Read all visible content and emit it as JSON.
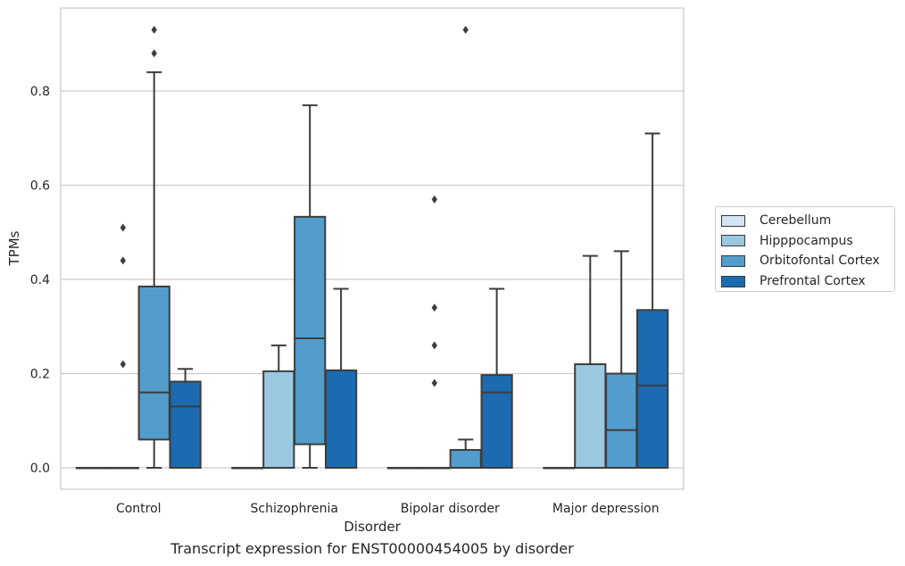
{
  "chart_data": {
    "type": "box",
    "title": "Transcript expression for ENST00000454005 by disorder",
    "xlabel": "Disorder",
    "ylabel": "TPMs",
    "ylim": [
      -0.045,
      0.98
    ],
    "yticks": [
      0.0,
      0.2,
      0.4,
      0.6,
      0.8
    ],
    "ytick_labels": [
      "0.0",
      "0.2",
      "0.4",
      "0.6",
      "0.8"
    ],
    "grid": "horizontal",
    "legend_position": "right",
    "categories": [
      "Control",
      "Schizophrenia",
      "Bipolar disorder",
      "Major depression"
    ],
    "series": [
      {
        "name": "Cerebellum",
        "color": "#d3e4f3",
        "boxes": [
          {
            "q1": 0.0,
            "median": 0.0,
            "q3": 0.0,
            "whisker_low": 0.0,
            "whisker_high": 0.0,
            "fliers": []
          },
          {
            "q1": 0.0,
            "median": 0.0,
            "q3": 0.0,
            "whisker_low": 0.0,
            "whisker_high": 0.0,
            "fliers": []
          },
          {
            "q1": 0.0,
            "median": 0.0,
            "q3": 0.0,
            "whisker_low": 0.0,
            "whisker_high": 0.0,
            "fliers": []
          },
          {
            "q1": 0.0,
            "median": 0.0,
            "q3": 0.0,
            "whisker_low": 0.0,
            "whisker_high": 0.0,
            "fliers": []
          }
        ]
      },
      {
        "name": "Hipppocampus",
        "color": "#9ac8e0",
        "boxes": [
          {
            "q1": 0.0,
            "median": 0.0,
            "q3": 0.0,
            "whisker_low": 0.0,
            "whisker_high": 0.0,
            "fliers": [
              0.22,
              0.44,
              0.51
            ]
          },
          {
            "q1": 0.0,
            "median": 0.0,
            "q3": 0.205,
            "whisker_low": 0.0,
            "whisker_high": 0.26,
            "fliers": []
          },
          {
            "q1": 0.0,
            "median": 0.0,
            "q3": 0.0,
            "whisker_low": 0.0,
            "whisker_high": 0.0,
            "fliers": [
              0.18,
              0.26,
              0.34,
              0.57
            ]
          },
          {
            "q1": 0.0,
            "median": 0.0,
            "q3": 0.22,
            "whisker_low": 0.0,
            "whisker_high": 0.45,
            "fliers": []
          }
        ]
      },
      {
        "name": "Orbitofontal Cortex",
        "color": "#529dcc",
        "boxes": [
          {
            "q1": 0.06,
            "median": 0.16,
            "q3": 0.385,
            "whisker_low": 0.0,
            "whisker_high": 0.84,
            "fliers": [
              0.88,
              0.93
            ]
          },
          {
            "q1": 0.05,
            "median": 0.275,
            "q3": 0.533,
            "whisker_low": 0.0,
            "whisker_high": 0.77,
            "fliers": []
          },
          {
            "q1": 0.0,
            "median": 0.0,
            "q3": 0.038,
            "whisker_low": 0.0,
            "whisker_high": 0.06,
            "fliers": [
              0.93
            ]
          },
          {
            "q1": 0.0,
            "median": 0.08,
            "q3": 0.2,
            "whisker_low": 0.0,
            "whisker_high": 0.46,
            "fliers": []
          }
        ]
      },
      {
        "name": "Prefrontal Cortex",
        "color": "#1c6aaf",
        "boxes": [
          {
            "q1": 0.0,
            "median": 0.13,
            "q3": 0.183,
            "whisker_low": 0.0,
            "whisker_high": 0.21,
            "fliers": []
          },
          {
            "q1": 0.0,
            "median": 0.0,
            "q3": 0.207,
            "whisker_low": 0.0,
            "whisker_high": 0.38,
            "fliers": []
          },
          {
            "q1": 0.0,
            "median": 0.16,
            "q3": 0.197,
            "whisker_low": 0.0,
            "whisker_high": 0.38,
            "fliers": []
          },
          {
            "q1": 0.0,
            "median": 0.175,
            "q3": 0.335,
            "whisker_low": 0.0,
            "whisker_high": 0.71,
            "fliers": []
          }
        ]
      }
    ]
  }
}
